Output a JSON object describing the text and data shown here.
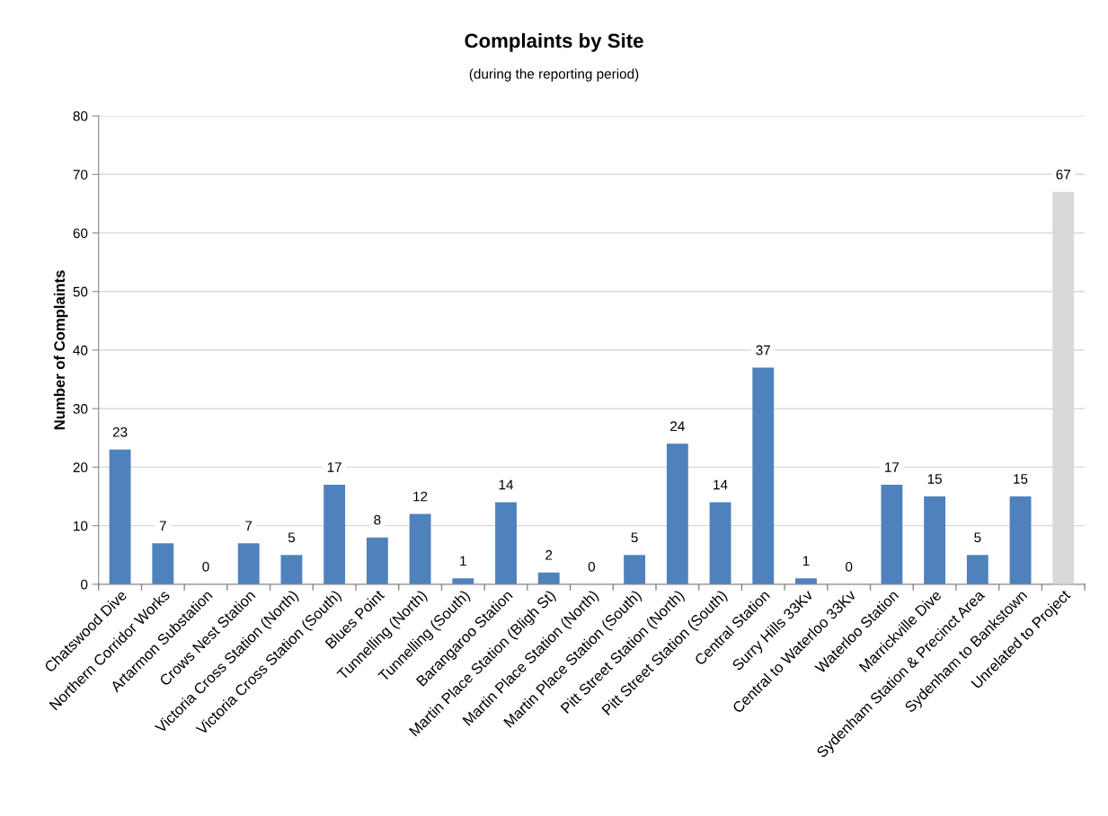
{
  "chart_data": {
    "type": "bar",
    "title": "Complaints by Site",
    "subtitle": "(during the reporting period)",
    "ylabel": "Number of Complaints",
    "categories": [
      "Chatswood Dive",
      "Northern Corridor Works",
      "Artarmon Substation",
      "Crows Nest Station",
      "Victoria Cross Station (North)",
      "Victoria Cross Station (South)",
      "Blues Point",
      "Tunnelling (North)",
      "Tunnelling (South)",
      "Barangaroo Station",
      "Martin Place Station (Bligh St)",
      "Martin Place Station (North)",
      "Martin Place Station (South)",
      "Pitt Street Station (North)",
      "Pitt Street Station (South)",
      "Central Station",
      "Surry Hills 33Kv",
      "Central to Waterloo 33Kv",
      "Waterloo Station",
      "Marrickville Dive",
      "Sydenham Station & Precinct Area",
      "Sydenham to Bankstown",
      "Unrelated to Project"
    ],
    "values": [
      23,
      7,
      0,
      7,
      5,
      17,
      8,
      12,
      1,
      14,
      2,
      0,
      5,
      24,
      14,
      37,
      1,
      0,
      17,
      15,
      5,
      15,
      67
    ],
    "colors": [
      "#4f81bd",
      "#4f81bd",
      "#4f81bd",
      "#4f81bd",
      "#4f81bd",
      "#4f81bd",
      "#4f81bd",
      "#4f81bd",
      "#4f81bd",
      "#4f81bd",
      "#4f81bd",
      "#4f81bd",
      "#4f81bd",
      "#4f81bd",
      "#4f81bd",
      "#4f81bd",
      "#4f81bd",
      "#4f81bd",
      "#4f81bd",
      "#4f81bd",
      "#4f81bd",
      "#4f81bd",
      "#d9d9d9"
    ],
    "ylim": [
      0,
      80
    ],
    "yticks": [
      0,
      10,
      20,
      30,
      40,
      50,
      60,
      70,
      80
    ],
    "grid": "y",
    "data_labels": true
  }
}
